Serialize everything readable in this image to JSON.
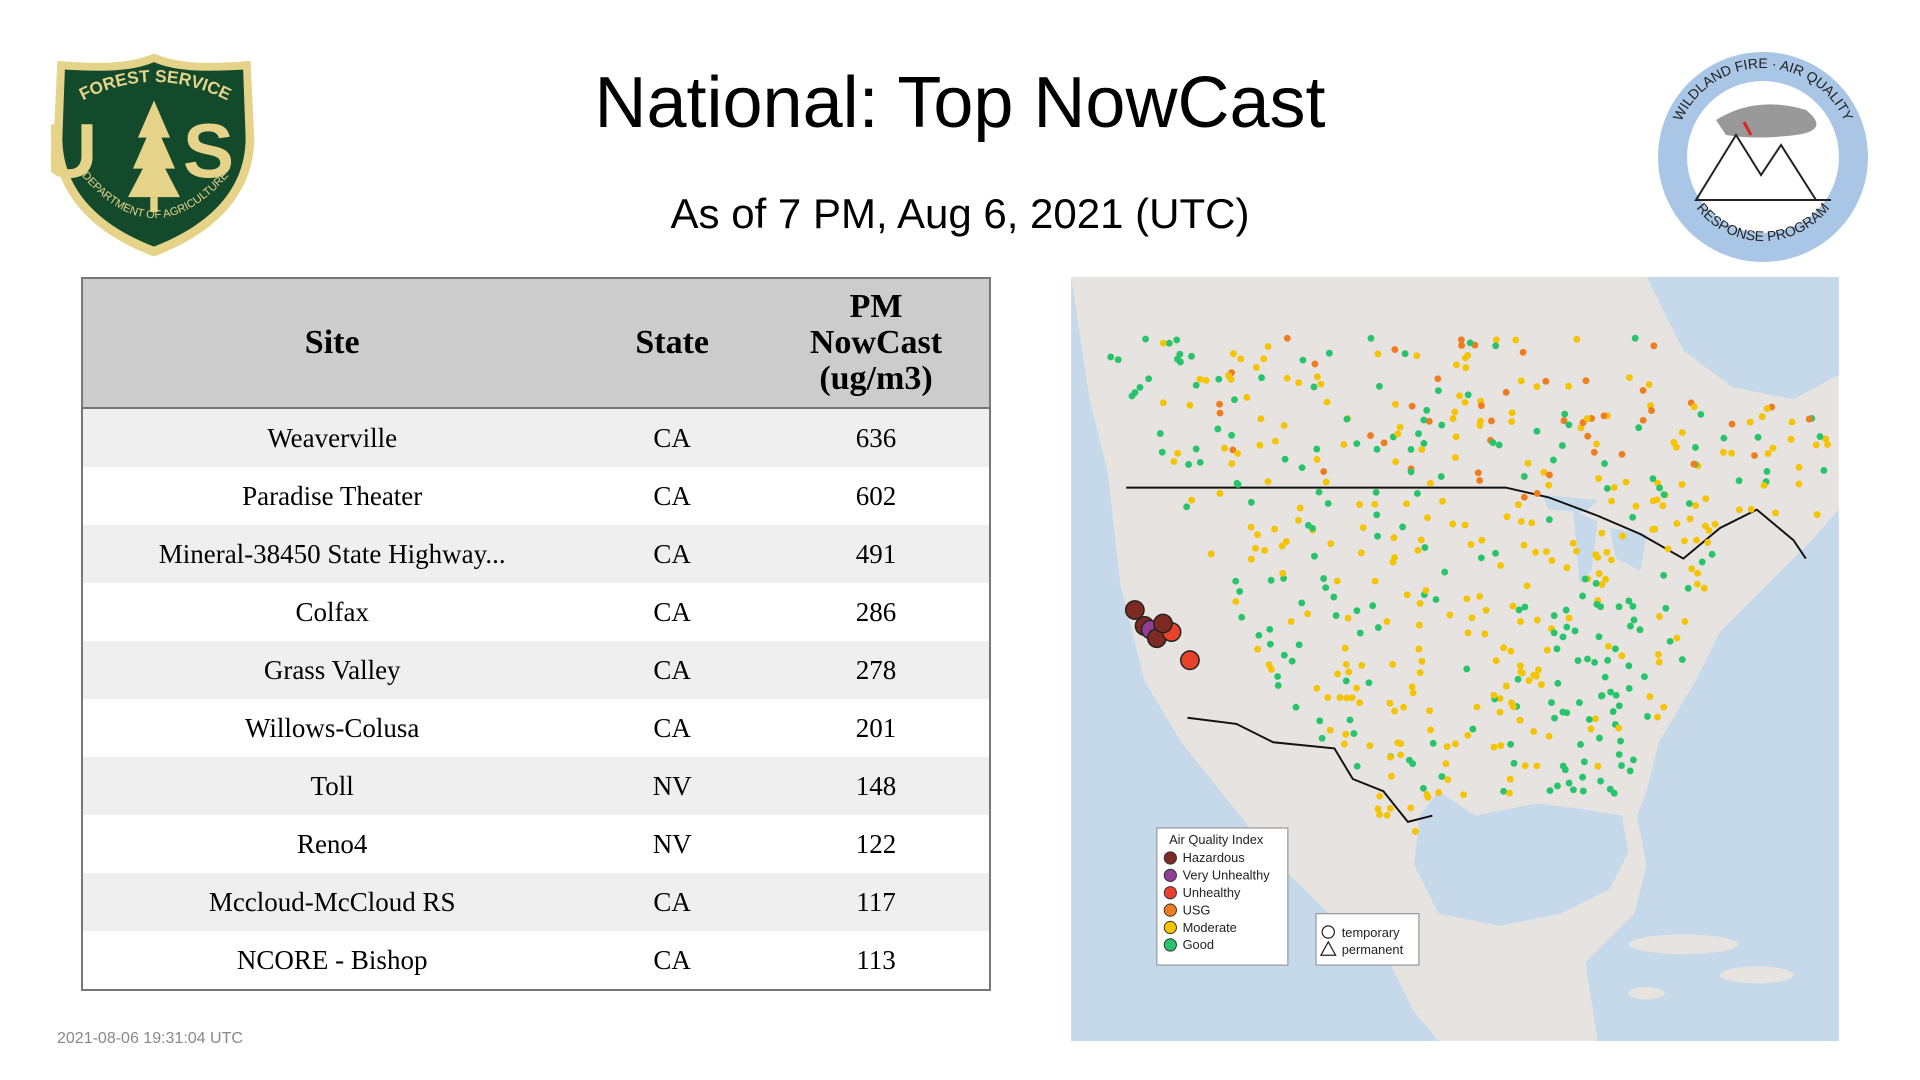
{
  "header": {
    "title": "National: Top NowCast",
    "subtitle": "As of  7 PM, Aug  6, 2021 (UTC)"
  },
  "logos": {
    "left": {
      "top": "FOREST SERVICE",
      "letters": "U S",
      "bottom": "DEPARTMENT OF AGRICULTURE"
    },
    "right": {
      "top": "WILDLAND FIRE · AIR QUALITY",
      "bottom": "RESPONSE PROGRAM"
    }
  },
  "table": {
    "columns": [
      "Site",
      "State",
      "PM NowCast (ug/m3)"
    ],
    "rows": [
      [
        "Weaverville",
        "CA",
        "636"
      ],
      [
        "Paradise Theater",
        "CA",
        "602"
      ],
      [
        "Mineral-38450 State Highway...",
        "CA",
        "491"
      ],
      [
        "Colfax",
        "CA",
        "286"
      ],
      [
        "Grass Valley",
        "CA",
        "278"
      ],
      [
        "Willows-Colusa",
        "CA",
        "201"
      ],
      [
        "Toll",
        "NV",
        "148"
      ],
      [
        "Reno4",
        "NV",
        "122"
      ],
      [
        "Mccloud-McCloud RS",
        "CA",
        "117"
      ],
      [
        "NCORE - Bishop",
        "CA",
        "113"
      ]
    ]
  },
  "map": {
    "legend": {
      "title": "Air Quality Index",
      "items": [
        {
          "label": "Hazardous",
          "color": "#7e2a22"
        },
        {
          "label": "Very Unhealthy",
          "color": "#8f3f97"
        },
        {
          "label": "Unhealthy",
          "color": "#e8412c"
        },
        {
          "label": "USG",
          "color": "#ef7d1f"
        },
        {
          "label": "Moderate",
          "color": "#f5c400"
        },
        {
          "label": "Good",
          "color": "#27c46b"
        }
      ]
    },
    "markers": [
      "temporary",
      "permanent"
    ]
  },
  "footer": {
    "timestamp": "2021-08-06 19:31:04 UTC"
  }
}
